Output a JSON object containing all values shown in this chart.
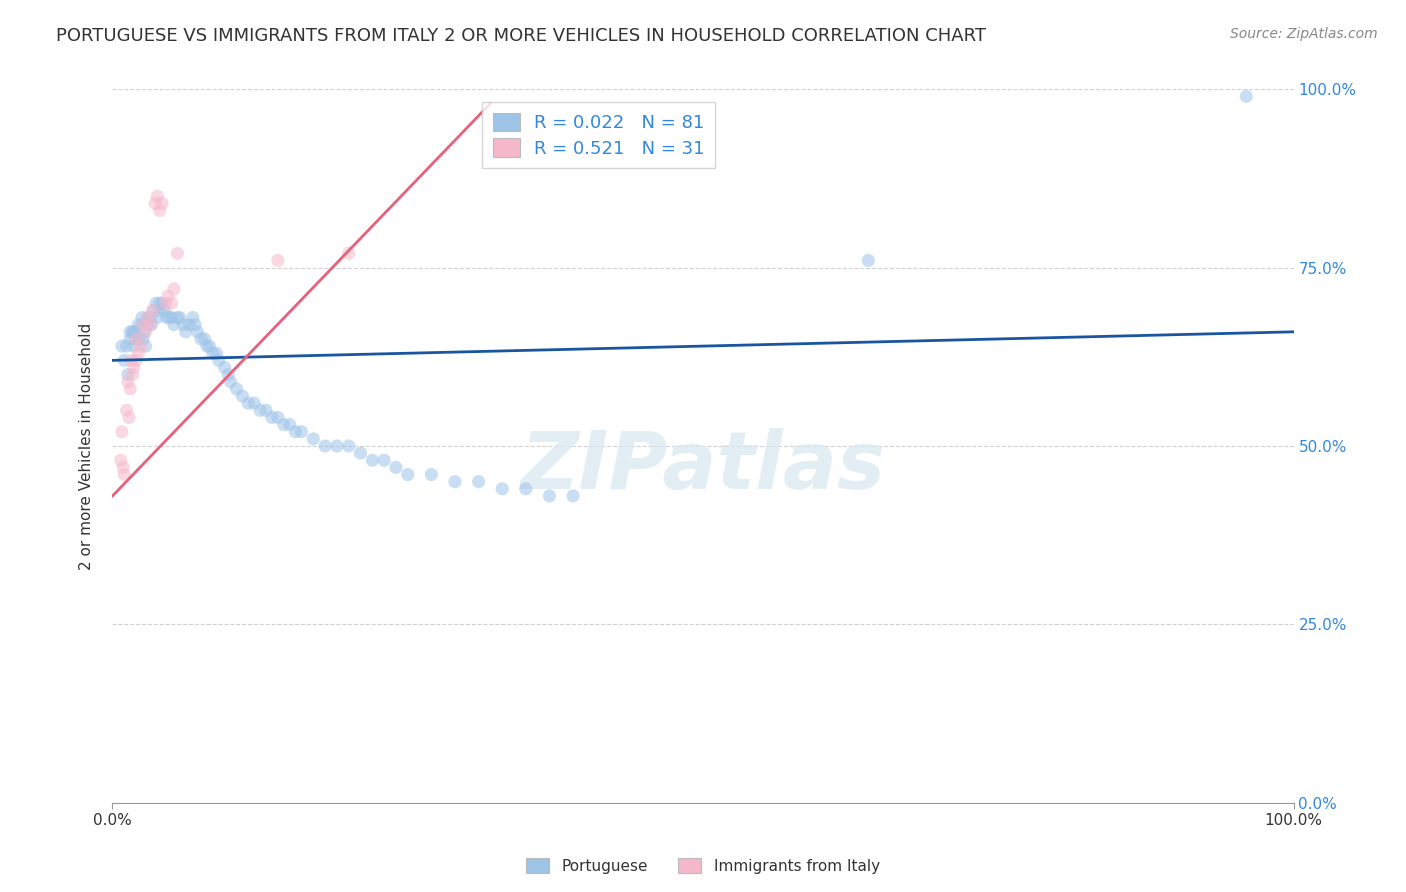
{
  "title": "PORTUGUESE VS IMMIGRANTS FROM ITALY 2 OR MORE VEHICLES IN HOUSEHOLD CORRELATION CHART",
  "source": "Source: ZipAtlas.com",
  "ylabel": "2 or more Vehicles in Household",
  "xlabel": "",
  "xlim": [
    0,
    1
  ],
  "ylim": [
    0,
    1
  ],
  "blue_R": 0.022,
  "blue_N": 81,
  "pink_R": 0.521,
  "pink_N": 31,
  "blue_color": "#9ec4e8",
  "pink_color": "#f5b8cb",
  "blue_line_color": "#1a56a0",
  "pink_line_color": "#e8607a",
  "legend_label_blue": "Portuguese",
  "legend_label_pink": "Immigrants from Italy",
  "blue_x": [
    0.008,
    0.01,
    0.012,
    0.013,
    0.015,
    0.015,
    0.017,
    0.018,
    0.018,
    0.02,
    0.02,
    0.022,
    0.022,
    0.025,
    0.025,
    0.026,
    0.027,
    0.028,
    0.03,
    0.03,
    0.032,
    0.033,
    0.035,
    0.037,
    0.038,
    0.04,
    0.04,
    0.042,
    0.044,
    0.046,
    0.048,
    0.05,
    0.052,
    0.055,
    0.057,
    0.06,
    0.062,
    0.065,
    0.068,
    0.07,
    0.072,
    0.075,
    0.078,
    0.08,
    0.082,
    0.085,
    0.088,
    0.09,
    0.095,
    0.098,
    0.1,
    0.105,
    0.11,
    0.115,
    0.12,
    0.125,
    0.13,
    0.135,
    0.14,
    0.145,
    0.15,
    0.155,
    0.16,
    0.17,
    0.18,
    0.19,
    0.2,
    0.21,
    0.22,
    0.23,
    0.24,
    0.25,
    0.27,
    0.29,
    0.31,
    0.33,
    0.35,
    0.37,
    0.39,
    0.64,
    0.96
  ],
  "blue_y": [
    0.64,
    0.62,
    0.64,
    0.6,
    0.66,
    0.65,
    0.66,
    0.66,
    0.64,
    0.66,
    0.65,
    0.67,
    0.65,
    0.68,
    0.67,
    0.65,
    0.66,
    0.64,
    0.68,
    0.67,
    0.68,
    0.67,
    0.69,
    0.7,
    0.68,
    0.7,
    0.69,
    0.7,
    0.69,
    0.68,
    0.68,
    0.68,
    0.67,
    0.68,
    0.68,
    0.67,
    0.66,
    0.67,
    0.68,
    0.67,
    0.66,
    0.65,
    0.65,
    0.64,
    0.64,
    0.63,
    0.63,
    0.62,
    0.61,
    0.6,
    0.59,
    0.58,
    0.57,
    0.56,
    0.56,
    0.55,
    0.55,
    0.54,
    0.54,
    0.53,
    0.53,
    0.52,
    0.52,
    0.51,
    0.5,
    0.5,
    0.5,
    0.49,
    0.48,
    0.48,
    0.47,
    0.46,
    0.46,
    0.45,
    0.45,
    0.44,
    0.44,
    0.43,
    0.43,
    0.76,
    0.99
  ],
  "pink_x": [
    0.007,
    0.008,
    0.009,
    0.01,
    0.012,
    0.013,
    0.014,
    0.015,
    0.016,
    0.017,
    0.018,
    0.02,
    0.02,
    0.022,
    0.024,
    0.026,
    0.028,
    0.03,
    0.032,
    0.034,
    0.036,
    0.038,
    0.04,
    0.042,
    0.045,
    0.047,
    0.05,
    0.052,
    0.055,
    0.14,
    0.2
  ],
  "pink_y": [
    0.48,
    0.52,
    0.47,
    0.46,
    0.55,
    0.59,
    0.54,
    0.58,
    0.62,
    0.6,
    0.61,
    0.65,
    0.62,
    0.63,
    0.64,
    0.67,
    0.66,
    0.68,
    0.67,
    0.69,
    0.84,
    0.85,
    0.83,
    0.84,
    0.7,
    0.71,
    0.7,
    0.72,
    0.77,
    0.76,
    0.77
  ],
  "blue_trend_x0": 0.0,
  "blue_trend_x1": 1.0,
  "blue_trend_y0": 0.62,
  "blue_trend_y1": 0.66,
  "pink_trend_x0": 0.0,
  "pink_trend_x1": 0.32,
  "pink_trend_y0": 0.43,
  "pink_trend_y1": 0.98,
  "background_color": "#ffffff",
  "grid_color": "#cccccc",
  "title_fontsize": 13,
  "source_fontsize": 10,
  "axis_label_fontsize": 11,
  "marker_size": 90,
  "marker_alpha": 0.55,
  "watermark_text": "ZIPatlas",
  "watermark_color": "#d8e8f0"
}
